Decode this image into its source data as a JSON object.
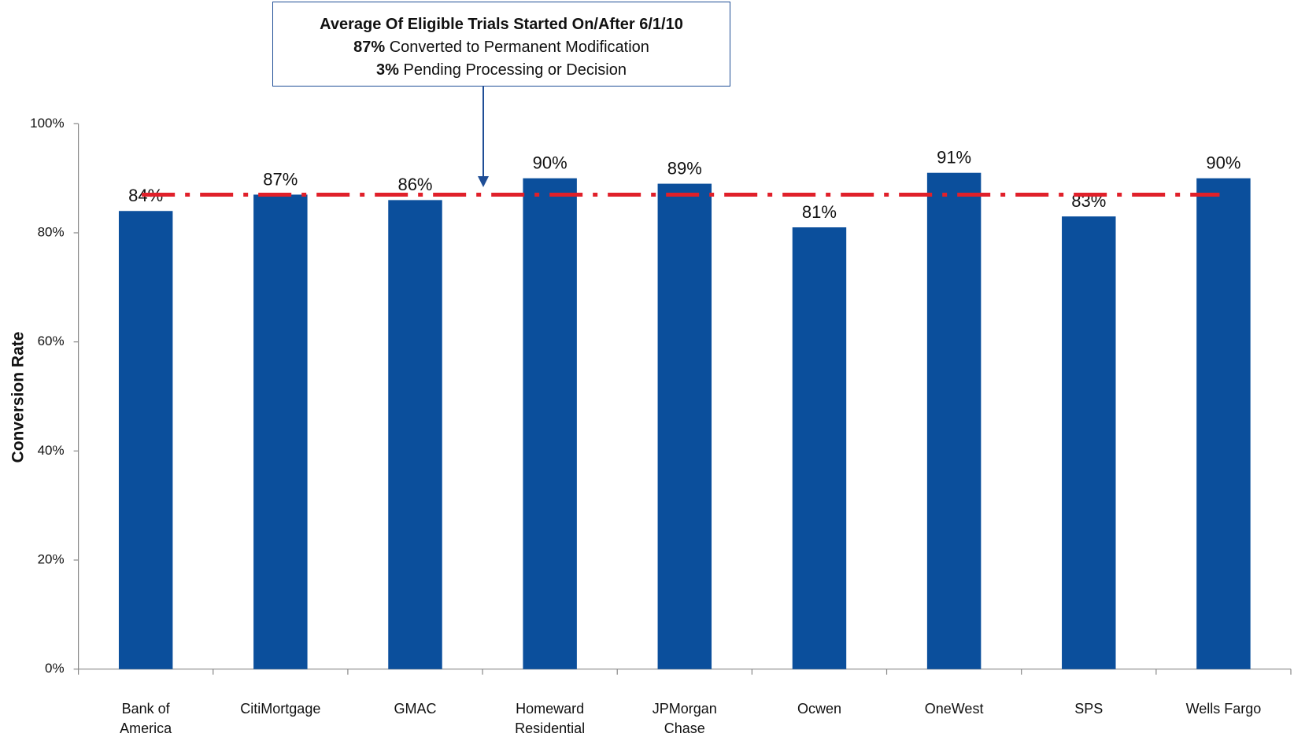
{
  "chart_data": {
    "type": "bar",
    "y_label": "Conversion Rate",
    "categories": [
      "Bank of America",
      "CitiMortgage",
      "GMAC",
      "Homeward Residential",
      "JPMorgan Chase",
      "Ocwen",
      "OneWest",
      "SPS",
      "Wells Fargo"
    ],
    "values": [
      84,
      87,
      86,
      90,
      89,
      81,
      91,
      83,
      90
    ],
    "value_labels": [
      "84%",
      "87%",
      "86%",
      "90%",
      "89%",
      "81%",
      "91%",
      "83%",
      "90%"
    ],
    "color": "#0b4f9c",
    "ylim": [
      0,
      100
    ],
    "yticks": [
      {
        "value": 0,
        "label": "0%"
      },
      {
        "value": 20,
        "label": "20%"
      },
      {
        "value": 40,
        "label": "40%"
      },
      {
        "value": 60,
        "label": "60%"
      },
      {
        "value": 80,
        "label": "80%"
      },
      {
        "value": 100,
        "label": "100%"
      }
    ],
    "reference_line": {
      "value": 87,
      "color": "#e0202a"
    },
    "annotation": {
      "title": "Average Of Eligible Trials Started On/After 6/1/10",
      "lines": [
        {
          "figure": "87%",
          "text": "Converted to Permanent Modification"
        },
        {
          "figure": "3%",
          "text": "Pending Processing or Decision"
        }
      ]
    }
  }
}
